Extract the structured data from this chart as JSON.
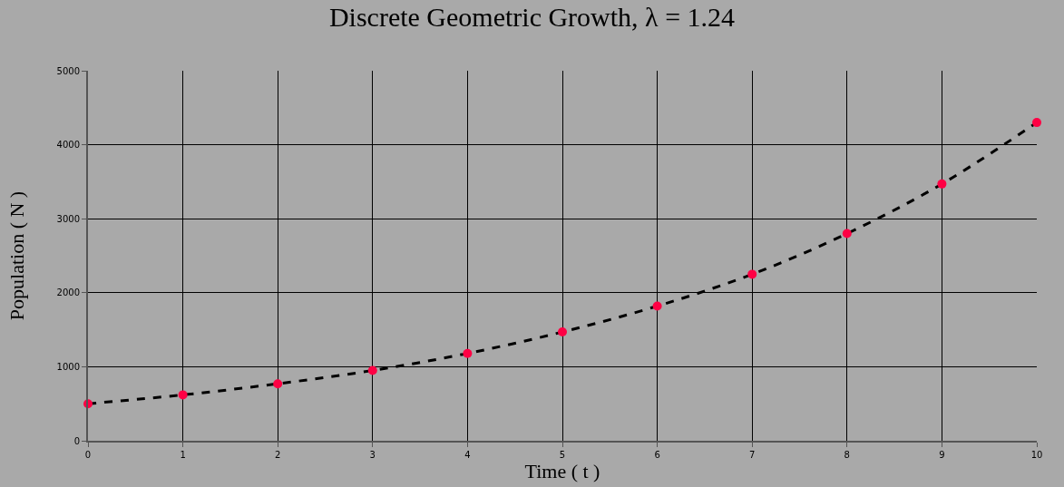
{
  "chart_data": {
    "type": "scatter",
    "title": "Discrete Geometric Growth, λ = 1.24",
    "xlabel": "Time ( t )",
    "ylabel": "Population ( N )",
    "x": [
      0,
      1,
      2,
      3,
      4,
      5,
      6,
      7,
      8,
      9,
      10
    ],
    "series": [
      {
        "type": "line",
        "color": "#000000",
        "line_style": "dashed",
        "marker": "none",
        "values": [
          500,
          620,
          770,
          950,
          1180,
          1470,
          1820,
          2250,
          2800,
          3470,
          4300
        ]
      },
      {
        "color": "#ff0044",
        "marker": "circle",
        "values": [
          500,
          620,
          770,
          950,
          1180,
          1470,
          1820,
          2250,
          2800,
          3470,
          4300
        ]
      }
    ],
    "xlim": [
      0,
      10
    ],
    "xticks": [
      0,
      1,
      2,
      3,
      4,
      5,
      6,
      7,
      8,
      9,
      10
    ],
    "ylim": [
      0,
      5000
    ],
    "yticks": [
      0,
      1000,
      2000,
      3000,
      4000,
      5000
    ],
    "grid": true
  }
}
